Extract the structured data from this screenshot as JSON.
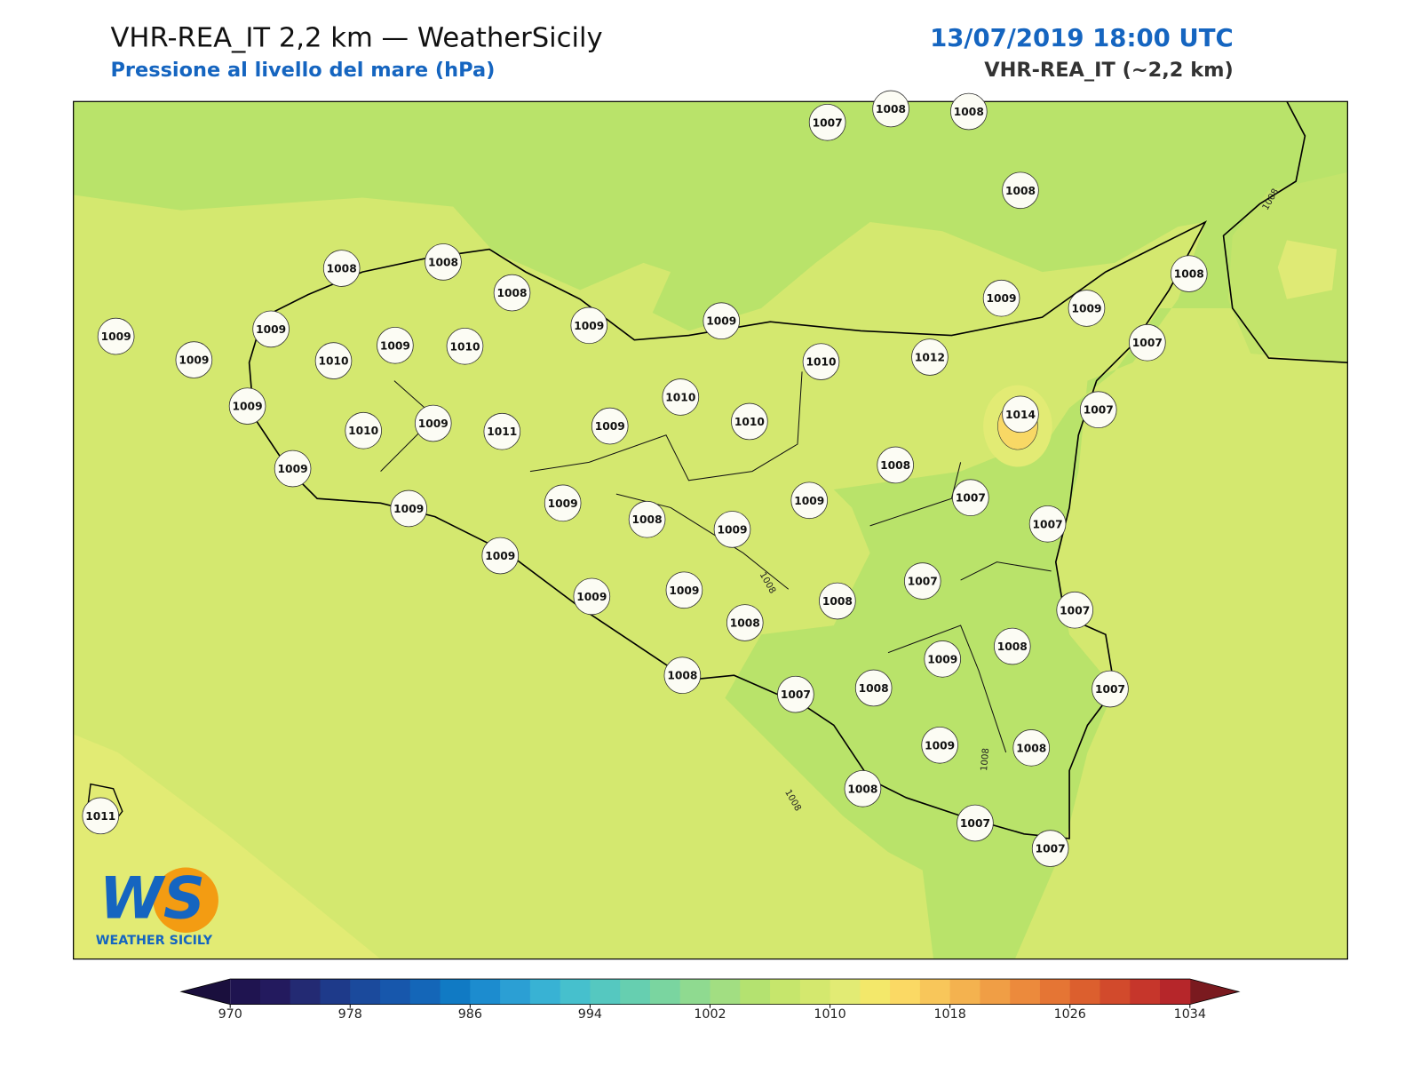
{
  "header": {
    "title": "VHR-REA_IT 2,2 km — WeatherSicily",
    "subtitle": "Pressione al livello del mare (hPa)",
    "datetime": "13/07/2019 18:00 UTC",
    "model": "VHR-REA_IT (~2,2 km)"
  },
  "stations": [
    1007,
    1008,
    1008,
    1008,
    1008,
    1008,
    1008,
    1009,
    1009,
    1009,
    1009,
    1008,
    1007,
    1009,
    1009,
    1009,
    1010,
    1009,
    1010,
    1010,
    1012,
    1010,
    1010,
    1014,
    1007,
    1009,
    1010,
    1009,
    1011,
    1009,
    1008,
    1009,
    1009,
    1007,
    1007,
    1009,
    1009,
    1008,
    1009,
    1009,
    1007,
    1009,
    1009,
    1008,
    1008,
    1007,
    1008,
    1009,
    1008,
    1007,
    1008,
    1007,
    1009,
    1008,
    1008,
    1011,
    1007,
    1007
  ],
  "contour_labels": [
    1008,
    1008,
    1008,
    1008
  ],
  "colorbar": {
    "ticks": [
      970,
      978,
      986,
      994,
      1002,
      1010,
      1018,
      1026,
      1034
    ],
    "colors": [
      "#1f1450",
      "#231a5e",
      "#232a73",
      "#1e3a8a",
      "#1b4a9c",
      "#1757ac",
      "#1466b8",
      "#107ac4",
      "#1c8ccf",
      "#2b9fd4",
      "#38b2d4",
      "#46c0cd",
      "#55c8c0",
      "#66cfb0",
      "#7ad5a0",
      "#8fda90",
      "#a2de82",
      "#b4e270",
      "#c6e66c",
      "#d4e86e",
      "#e2eb74",
      "#f3e86a",
      "#fbd964",
      "#f8c65a",
      "#f4b24f",
      "#f09e45",
      "#ec8a3c",
      "#e57534",
      "#dc5f2e",
      "#d24a2c",
      "#c6362b",
      "#b6262a"
    ],
    "under_color": "#1a0f3d",
    "over_color": "#7a1a1f"
  },
  "logo": {
    "mark": "WS",
    "name": "WEATHER SICILY"
  }
}
